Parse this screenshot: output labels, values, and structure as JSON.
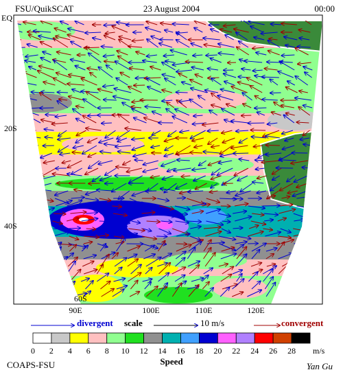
{
  "header": {
    "left": "FSU/QuikSCAT",
    "center": "23 August 2004",
    "right": "00:00"
  },
  "map": {
    "lat_labels": [
      "EQ",
      "20S",
      "40S",
      "60S"
    ],
    "lon_labels": [
      "90E",
      "100E",
      "110E",
      "120E"
    ]
  },
  "legend": {
    "divergent": "divergent",
    "scale": "scale",
    "scale_value": "10 m/s",
    "convergent": "convergent",
    "ticks": [
      0,
      2,
      4,
      6,
      8,
      10,
      12,
      14,
      16,
      18,
      20,
      22,
      24,
      26,
      28
    ],
    "unit": "m/s",
    "label": "Speed",
    "colors": [
      "#ffffff",
      "#c8c8c8",
      "#ffff00",
      "#ffc0c0",
      "#90ff90",
      "#20e020",
      "#909090",
      "#00b0b0",
      "#40a0ff",
      "#0000d0",
      "#ff60ff",
      "#b080ff",
      "#ff0000",
      "#d04000",
      "#000000"
    ]
  },
  "footer": {
    "left": "COAPS-FSU",
    "right": "Yan Gu"
  }
}
